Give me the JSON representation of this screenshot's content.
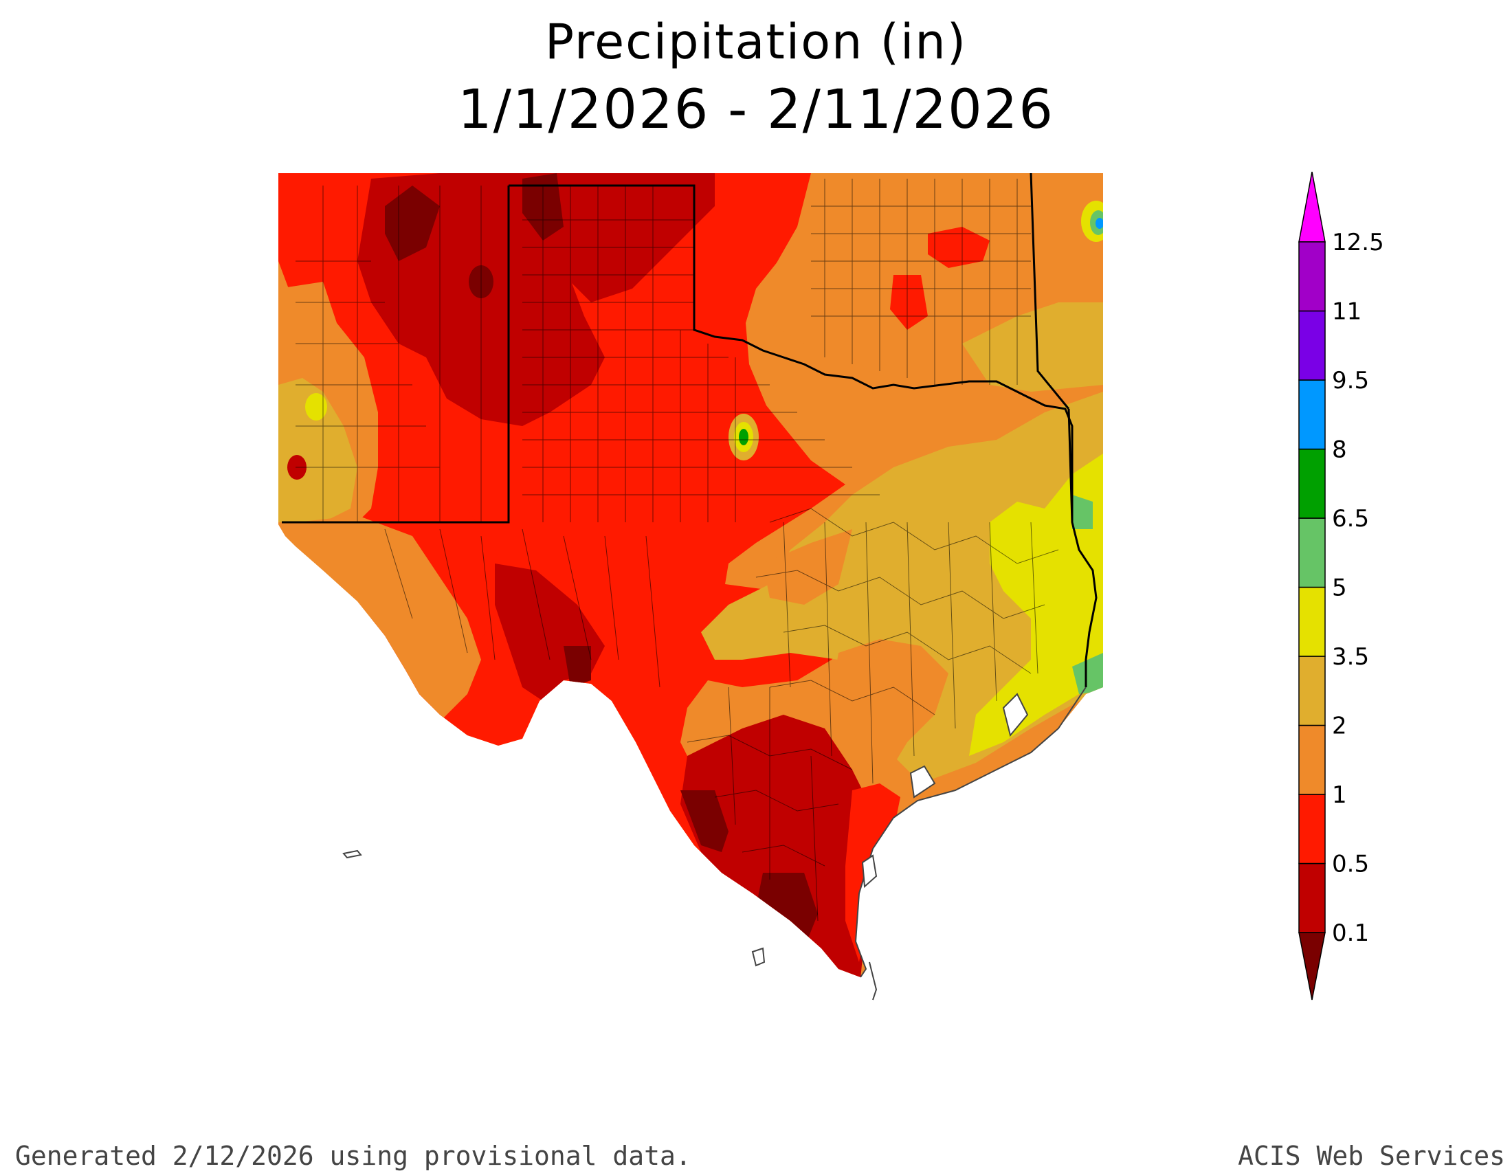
{
  "title": "Precipitation (in)",
  "subtitle": "1/1/2026 - 2/11/2026",
  "legend": {
    "min_color": "#7a0000",
    "max_color": "#ff00ff",
    "bins": [
      {
        "color": "#c00000"
      },
      {
        "color": "#ff1a00"
      },
      {
        "color": "#ef8a2a"
      },
      {
        "color": "#e0ae2e"
      },
      {
        "color": "#e5e100"
      },
      {
        "color": "#66c466"
      },
      {
        "color": "#00a000"
      },
      {
        "color": "#0098ff"
      },
      {
        "color": "#7a00e6"
      },
      {
        "color": "#a100c8"
      }
    ],
    "labels": [
      "0.1",
      "0.5",
      "1",
      "2",
      "3.5",
      "5",
      "6.5",
      "8",
      "9.5",
      "11",
      "12.5"
    ]
  },
  "footer_left": "Generated 2/12/2026  using provisional data.",
  "footer_right": "ACIS Web Services"
}
